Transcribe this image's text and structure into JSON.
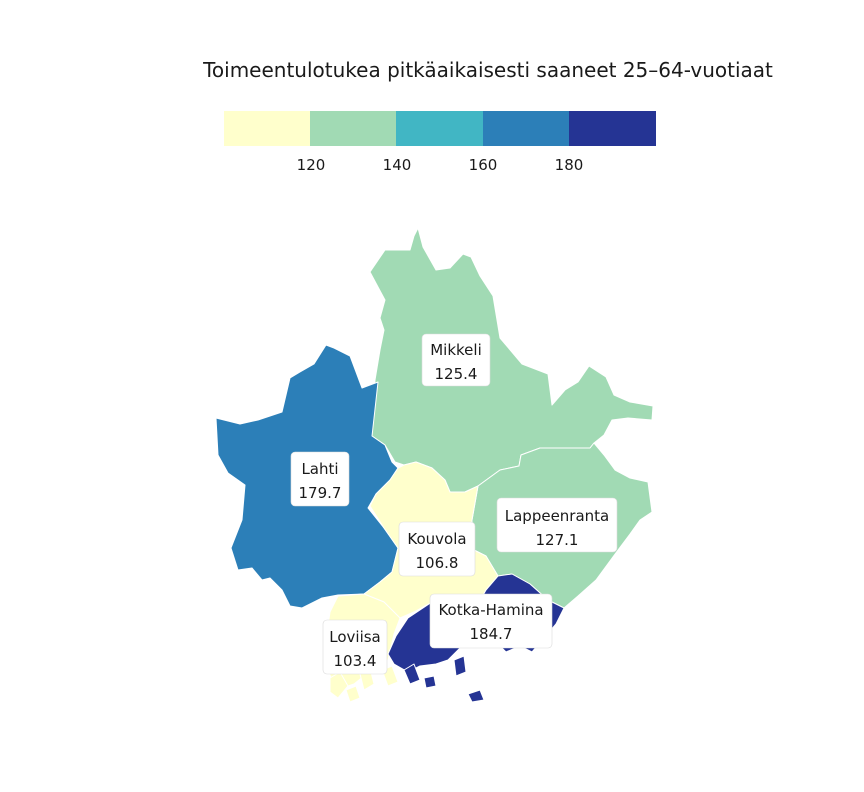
{
  "title": "Toimeentulotukea pitkäaikaisesti saaneet 25–64-vuotiaat",
  "legend": {
    "colors": [
      "#ffffcc",
      "#a1dab4",
      "#41b6c4",
      "#2c7fb8",
      "#253494"
    ],
    "ticks": [
      "120",
      "140",
      "160",
      "180"
    ],
    "breaks": [
      100,
      120,
      140,
      160,
      180,
      200
    ]
  },
  "regions": [
    {
      "key": "mikkeli",
      "name": "Mikkeli",
      "value": 125.4,
      "value_text": "125.4"
    },
    {
      "key": "lahti",
      "name": "Lahti",
      "value": 179.7,
      "value_text": "179.7"
    },
    {
      "key": "lappeenranta",
      "name": "Lappeenranta",
      "value": 127.1,
      "value_text": "127.1"
    },
    {
      "key": "kouvola",
      "name": "Kouvola",
      "value": 106.8,
      "value_text": "106.8"
    },
    {
      "key": "kotka",
      "name": "Kotka-Hamina",
      "value": 184.7,
      "value_text": "184.7"
    },
    {
      "key": "loviisa",
      "name": "Loviisa",
      "value": 103.4,
      "value_text": "103.4"
    }
  ]
}
